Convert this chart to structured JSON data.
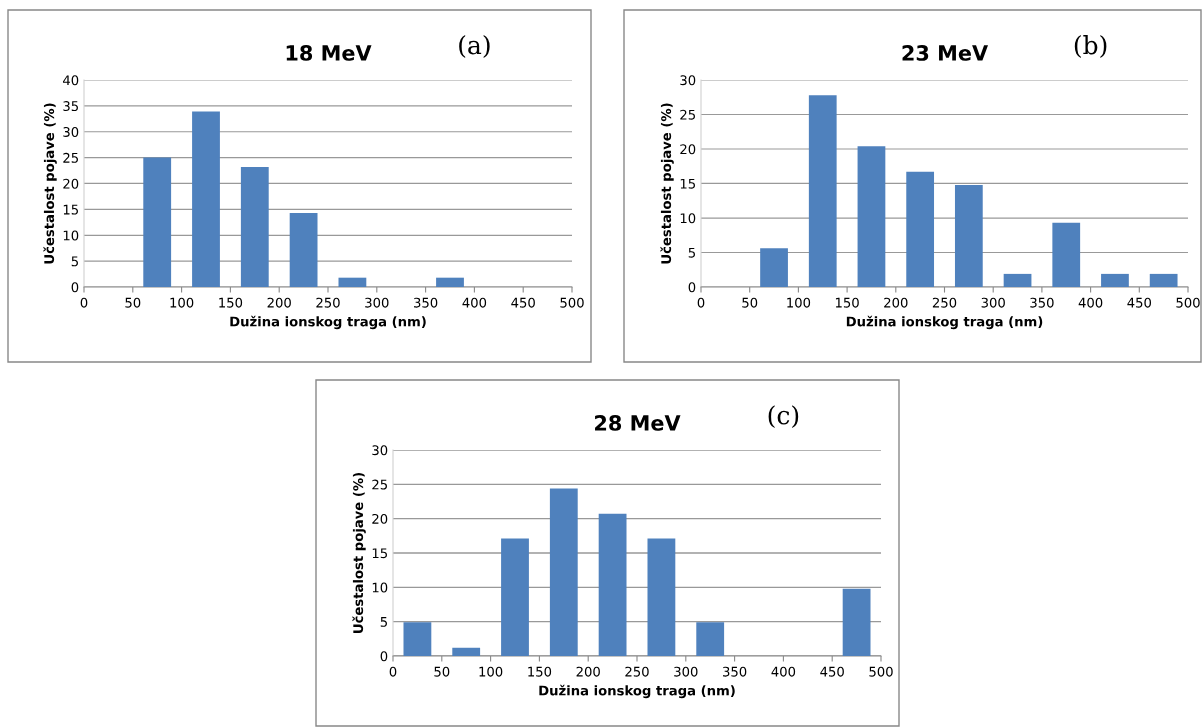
{
  "chart_data": [
    {
      "type": "histogram",
      "title": "18 MeV",
      "xlabel": "Dužina ionskog traga (nm)",
      "ylabel": "Učestalost pojave (%)",
      "annotations": [
        "(a)"
      ],
      "bins": [
        0,
        50,
        100,
        150,
        200,
        250,
        300,
        350,
        400,
        450,
        500
      ],
      "values": [
        0,
        25,
        33.9,
        23.2,
        14.3,
        1.8,
        0,
        1.8,
        0,
        0
      ],
      "color": "#4f81bd",
      "xlim": [
        0,
        500
      ],
      "xticks": [
        0,
        50,
        100,
        150,
        200,
        250,
        300,
        350,
        400,
        450,
        500
      ],
      "ylim": [
        0,
        40
      ],
      "yticks": [
        0,
        5,
        10,
        15,
        20,
        25,
        30,
        35,
        40
      ],
      "grid": "y"
    },
    {
      "type": "histogram",
      "title": "23 MeV",
      "xlabel": "Dužina ionskog traga (nm)",
      "ylabel": "Učestalost pojave (%)",
      "annotations": [
        "(b)"
      ],
      "bins": [
        0,
        50,
        100,
        150,
        200,
        250,
        300,
        350,
        400,
        450,
        500
      ],
      "values": [
        0,
        5.6,
        27.8,
        20.4,
        16.7,
        14.8,
        1.9,
        9.3,
        1.9,
        1.9
      ],
      "color": "#4f81bd",
      "xlim": [
        0,
        500
      ],
      "xticks": [
        0,
        50,
        100,
        150,
        200,
        250,
        300,
        350,
        400,
        450,
        500
      ],
      "ylim": [
        0,
        30
      ],
      "yticks": [
        0,
        5,
        10,
        15,
        20,
        25,
        30
      ],
      "grid": "y"
    },
    {
      "type": "histogram",
      "title": "28 MeV",
      "xlabel": "Dužina ionskog traga (nm)",
      "ylabel": "Učestalost pojave (%)",
      "annotations": [
        "(c)"
      ],
      "bins": [
        0,
        50,
        100,
        150,
        200,
        250,
        300,
        350,
        400,
        450,
        500
      ],
      "values": [
        4.9,
        1.2,
        17.1,
        24.4,
        20.7,
        17.1,
        4.9,
        0,
        0,
        9.8
      ],
      "color": "#4f81bd",
      "xlim": [
        0,
        500
      ],
      "xticks": [
        0,
        50,
        100,
        150,
        200,
        250,
        300,
        350,
        400,
        450,
        500
      ],
      "ylim": [
        0,
        30
      ],
      "yticks": [
        0,
        5,
        10,
        15,
        20,
        25,
        30
      ],
      "grid": "y"
    }
  ]
}
